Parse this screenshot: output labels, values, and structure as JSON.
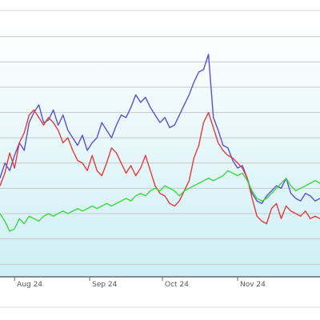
{
  "chart_data": {
    "type": "line",
    "title": "",
    "xlabel": "",
    "ylabel": "",
    "legend": "none",
    "grid": true,
    "x_ticks": [
      {
        "date": "2024-08-01",
        "label": "Aug 24"
      },
      {
        "date": "2024-09-01",
        "label": "Sep 24"
      },
      {
        "date": "2024-10-01",
        "label": "Oct 24"
      },
      {
        "date": "2024-11-01",
        "label": "Nov 24"
      }
    ],
    "xlim": [
      "2024-07-26",
      "2024-12-05"
    ],
    "ylim": [
      0,
      10
    ],
    "y_gridlines": [
      0.5,
      1.5,
      2.5,
      3.5,
      4.5,
      5.5,
      6.5,
      7.5,
      8.5,
      9.5
    ],
    "series": [
      {
        "color": "#5b4fd1",
        "points": [
          [
            "2024-07-26",
            3.9
          ],
          [
            "2024-07-28",
            4.5
          ],
          [
            "2024-07-30",
            4.2
          ],
          [
            "2024-08-01",
            4.8
          ],
          [
            "2024-08-03",
            5.3
          ],
          [
            "2024-08-05",
            5.0
          ],
          [
            "2024-08-07",
            6.1
          ],
          [
            "2024-08-09",
            6.5
          ],
          [
            "2024-08-11",
            6.8
          ],
          [
            "2024-08-13",
            6.1
          ],
          [
            "2024-08-15",
            6.2
          ],
          [
            "2024-08-17",
            6.6
          ],
          [
            "2024-08-19",
            6.0
          ],
          [
            "2024-08-21",
            6.4
          ],
          [
            "2024-08-23",
            5.8
          ],
          [
            "2024-08-25",
            5.5
          ],
          [
            "2024-08-27",
            5.2
          ],
          [
            "2024-08-29",
            5.6
          ],
          [
            "2024-08-31",
            5.0
          ],
          [
            "2024-09-02",
            5.3
          ],
          [
            "2024-09-04",
            5.5
          ],
          [
            "2024-09-06",
            6.1
          ],
          [
            "2024-09-08",
            5.8
          ],
          [
            "2024-09-10",
            5.5
          ],
          [
            "2024-09-12",
            6.0
          ],
          [
            "2024-09-14",
            6.4
          ],
          [
            "2024-09-16",
            6.3
          ],
          [
            "2024-09-18",
            6.7
          ],
          [
            "2024-09-20",
            7.2
          ],
          [
            "2024-09-22",
            6.9
          ],
          [
            "2024-09-24",
            7.1
          ],
          [
            "2024-09-26",
            6.7
          ],
          [
            "2024-09-28",
            6.4
          ],
          [
            "2024-09-30",
            6.1
          ],
          [
            "2024-10-02",
            6.3
          ],
          [
            "2024-10-04",
            5.9
          ],
          [
            "2024-10-06",
            6.0
          ],
          [
            "2024-10-08",
            6.4
          ],
          [
            "2024-10-10",
            6.8
          ],
          [
            "2024-10-12",
            7.2
          ],
          [
            "2024-10-14",
            7.7
          ],
          [
            "2024-10-16",
            8.1
          ],
          [
            "2024-10-18",
            8.2
          ],
          [
            "2024-10-20",
            8.8
          ],
          [
            "2024-10-22",
            6.3
          ],
          [
            "2024-10-24",
            5.8
          ],
          [
            "2024-10-26",
            5.2
          ],
          [
            "2024-10-28",
            5.1
          ],
          [
            "2024-10-30",
            4.6
          ],
          [
            "2024-11-01",
            4.3
          ],
          [
            "2024-11-03",
            4.4
          ],
          [
            "2024-11-05",
            3.9
          ],
          [
            "2024-11-07",
            3.3
          ],
          [
            "2024-11-09",
            3.0
          ],
          [
            "2024-11-11",
            2.9
          ],
          [
            "2024-11-13",
            3.2
          ],
          [
            "2024-11-15",
            3.4
          ],
          [
            "2024-11-17",
            3.6
          ],
          [
            "2024-11-19",
            3.5
          ],
          [
            "2024-11-21",
            3.9
          ],
          [
            "2024-11-23",
            3.3
          ],
          [
            "2024-11-25",
            3.1
          ],
          [
            "2024-11-27",
            3.0
          ],
          [
            "2024-11-29",
            3.3
          ],
          [
            "2024-12-01",
            3.2
          ],
          [
            "2024-12-03",
            3.0
          ],
          [
            "2024-12-05",
            3.1
          ]
        ]
      },
      {
        "color": "#e33a3a",
        "points": [
          [
            "2024-07-26",
            3.6
          ],
          [
            "2024-07-28",
            4.1
          ],
          [
            "2024-07-30",
            4.9
          ],
          [
            "2024-08-01",
            4.3
          ],
          [
            "2024-08-03",
            5.3
          ],
          [
            "2024-08-05",
            5.7
          ],
          [
            "2024-08-07",
            6.4
          ],
          [
            "2024-08-09",
            6.6
          ],
          [
            "2024-08-11",
            6.3
          ],
          [
            "2024-08-13",
            6.0
          ],
          [
            "2024-08-15",
            6.3
          ],
          [
            "2024-08-17",
            6.1
          ],
          [
            "2024-08-19",
            5.8
          ],
          [
            "2024-08-21",
            5.3
          ],
          [
            "2024-08-23",
            5.5
          ],
          [
            "2024-08-25",
            5.0
          ],
          [
            "2024-08-27",
            4.6
          ],
          [
            "2024-08-29",
            4.5
          ],
          [
            "2024-08-31",
            4.2
          ],
          [
            "2024-09-02",
            4.8
          ],
          [
            "2024-09-04",
            4.2
          ],
          [
            "2024-09-06",
            4.0
          ],
          [
            "2024-09-08",
            4.5
          ],
          [
            "2024-09-10",
            5.1
          ],
          [
            "2024-09-12",
            4.9
          ],
          [
            "2024-09-14",
            4.5
          ],
          [
            "2024-09-16",
            4.1
          ],
          [
            "2024-09-18",
            4.4
          ],
          [
            "2024-09-20",
            4.0
          ],
          [
            "2024-09-22",
            4.3
          ],
          [
            "2024-09-24",
            4.8
          ],
          [
            "2024-09-26",
            4.2
          ],
          [
            "2024-09-28",
            3.6
          ],
          [
            "2024-09-30",
            3.3
          ],
          [
            "2024-10-02",
            3.2
          ],
          [
            "2024-10-04",
            2.9
          ],
          [
            "2024-10-06",
            2.8
          ],
          [
            "2024-10-08",
            3.0
          ],
          [
            "2024-10-10",
            3.4
          ],
          [
            "2024-10-12",
            3.8
          ],
          [
            "2024-10-14",
            4.7
          ],
          [
            "2024-10-16",
            5.2
          ],
          [
            "2024-10-18",
            6.1
          ],
          [
            "2024-10-20",
            6.5
          ],
          [
            "2024-10-22",
            5.9
          ],
          [
            "2024-10-24",
            5.3
          ],
          [
            "2024-10-26",
            5.0
          ],
          [
            "2024-10-28",
            4.8
          ],
          [
            "2024-10-30",
            4.7
          ],
          [
            "2024-11-01",
            4.5
          ],
          [
            "2024-11-03",
            4.3
          ],
          [
            "2024-11-05",
            3.9
          ],
          [
            "2024-11-07",
            3.1
          ],
          [
            "2024-11-09",
            2.4
          ],
          [
            "2024-11-11",
            2.2
          ],
          [
            "2024-11-13",
            2.1
          ],
          [
            "2024-11-15",
            2.7
          ],
          [
            "2024-11-17",
            2.9
          ],
          [
            "2024-11-19",
            2.3
          ],
          [
            "2024-11-21",
            2.8
          ],
          [
            "2024-11-23",
            2.6
          ],
          [
            "2024-11-25",
            2.5
          ],
          [
            "2024-11-27",
            2.4
          ],
          [
            "2024-11-29",
            2.6
          ],
          [
            "2024-12-01",
            2.3
          ],
          [
            "2024-12-03",
            2.4
          ],
          [
            "2024-12-05",
            2.3
          ]
        ]
      },
      {
        "color": "#3fd83f",
        "points": [
          [
            "2024-07-26",
            2.5
          ],
          [
            "2024-07-28",
            2.2
          ],
          [
            "2024-07-30",
            1.8
          ],
          [
            "2024-08-01",
            1.9
          ],
          [
            "2024-08-03",
            2.3
          ],
          [
            "2024-08-05",
            2.1
          ],
          [
            "2024-08-07",
            2.4
          ],
          [
            "2024-08-09",
            2.3
          ],
          [
            "2024-08-11",
            2.2
          ],
          [
            "2024-08-13",
            2.4
          ],
          [
            "2024-08-15",
            2.5
          ],
          [
            "2024-08-17",
            2.4
          ],
          [
            "2024-08-19",
            2.5
          ],
          [
            "2024-08-21",
            2.6
          ],
          [
            "2024-08-23",
            2.5
          ],
          [
            "2024-08-25",
            2.6
          ],
          [
            "2024-08-27",
            2.7
          ],
          [
            "2024-08-29",
            2.6
          ],
          [
            "2024-08-31",
            2.7
          ],
          [
            "2024-09-02",
            2.8
          ],
          [
            "2024-09-04",
            2.7
          ],
          [
            "2024-09-06",
            2.8
          ],
          [
            "2024-09-08",
            2.9
          ],
          [
            "2024-09-10",
            2.8
          ],
          [
            "2024-09-12",
            2.9
          ],
          [
            "2024-09-14",
            3.0
          ],
          [
            "2024-09-16",
            3.1
          ],
          [
            "2024-09-18",
            3.0
          ],
          [
            "2024-09-20",
            3.2
          ],
          [
            "2024-09-22",
            3.3
          ],
          [
            "2024-09-24",
            3.2
          ],
          [
            "2024-09-26",
            3.4
          ],
          [
            "2024-09-28",
            3.5
          ],
          [
            "2024-09-30",
            3.4
          ],
          [
            "2024-10-02",
            3.6
          ],
          [
            "2024-10-04",
            3.5
          ],
          [
            "2024-10-06",
            3.4
          ],
          [
            "2024-10-08",
            3.2
          ],
          [
            "2024-10-10",
            3.4
          ],
          [
            "2024-10-12",
            3.5
          ],
          [
            "2024-10-14",
            3.6
          ],
          [
            "2024-10-16",
            3.7
          ],
          [
            "2024-10-18",
            3.8
          ],
          [
            "2024-10-20",
            3.9
          ],
          [
            "2024-10-22",
            3.8
          ],
          [
            "2024-10-24",
            3.9
          ],
          [
            "2024-10-26",
            4.0
          ],
          [
            "2024-10-28",
            4.2
          ],
          [
            "2024-10-30",
            4.1
          ],
          [
            "2024-11-01",
            4.0
          ],
          [
            "2024-11-03",
            4.1
          ],
          [
            "2024-11-05",
            3.8
          ],
          [
            "2024-11-07",
            3.4
          ],
          [
            "2024-11-09",
            3.1
          ],
          [
            "2024-11-11",
            3.0
          ],
          [
            "2024-11-13",
            3.1
          ],
          [
            "2024-11-15",
            3.3
          ],
          [
            "2024-11-17",
            3.5
          ],
          [
            "2024-11-19",
            3.7
          ],
          [
            "2024-11-21",
            3.9
          ],
          [
            "2024-11-23",
            3.6
          ],
          [
            "2024-11-25",
            3.4
          ],
          [
            "2024-11-27",
            3.5
          ],
          [
            "2024-11-29",
            3.6
          ],
          [
            "2024-12-01",
            3.7
          ],
          [
            "2024-12-03",
            3.8
          ],
          [
            "2024-12-05",
            3.7
          ]
        ]
      }
    ]
  },
  "style": {
    "plot_bg_top": "#ffffff",
    "plot_bg_bottom": "#cdeff5",
    "grid_color": "#c8c8c8",
    "axis_color": "#666666",
    "border_color": "#cfcfcf"
  }
}
